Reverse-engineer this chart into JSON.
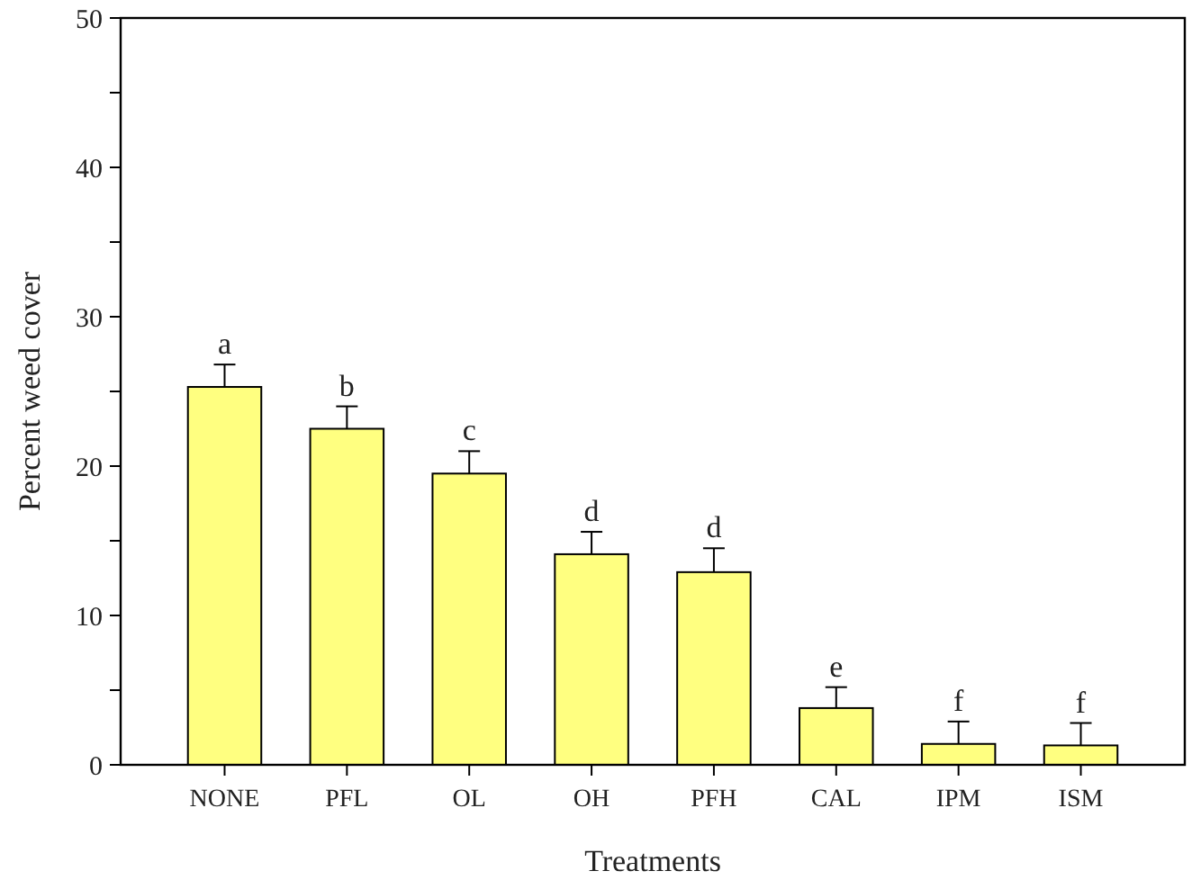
{
  "chart_data": {
    "type": "bar",
    "xlabel": "Treatments",
    "ylabel": "Percent weed cover",
    "categories": [
      "NONE",
      "PFL",
      "OL",
      "OH",
      "PFH",
      "CAL",
      "IPM",
      "ISM"
    ],
    "values": [
      25.3,
      22.5,
      19.5,
      14.1,
      12.9,
      3.8,
      1.4,
      1.3
    ],
    "errors": [
      [
        25.3,
        26.8
      ],
      [
        22.5,
        24.0
      ],
      [
        19.5,
        21.0
      ],
      [
        14.1,
        15.6
      ],
      [
        12.9,
        14.5
      ],
      [
        3.8,
        5.2
      ],
      [
        1.4,
        2.9
      ],
      [
        1.3,
        2.8
      ]
    ],
    "color": "#ffff80",
    "ylim": [
      0,
      50
    ],
    "yticks": [
      0,
      {
        "value": 5,
        "label": null
      },
      10,
      {
        "value": 15,
        "label": null
      },
      20,
      {
        "value": 25,
        "label": null
      },
      30,
      {
        "value": 35,
        "label": null
      },
      40,
      {
        "value": 45,
        "label": null
      },
      50
    ],
    "annotations": [
      {
        "text": "a",
        "x": "NONE",
        "y": 26.8
      },
      {
        "text": "b",
        "x": "PFL",
        "y": 24.0
      },
      {
        "text": "c",
        "x": "OL",
        "y": 21.0
      },
      {
        "text": "d",
        "x": "OH",
        "y": 15.6
      },
      {
        "text": "d",
        "x": "PFH",
        "y": 14.5
      },
      {
        "text": "e",
        "x": "CAL",
        "y": 5.2
      },
      {
        "text": "f",
        "x": "IPM",
        "y": 2.9
      },
      {
        "text": "f",
        "x": "ISM",
        "y": 2.8
      }
    ],
    "grid": false
  }
}
